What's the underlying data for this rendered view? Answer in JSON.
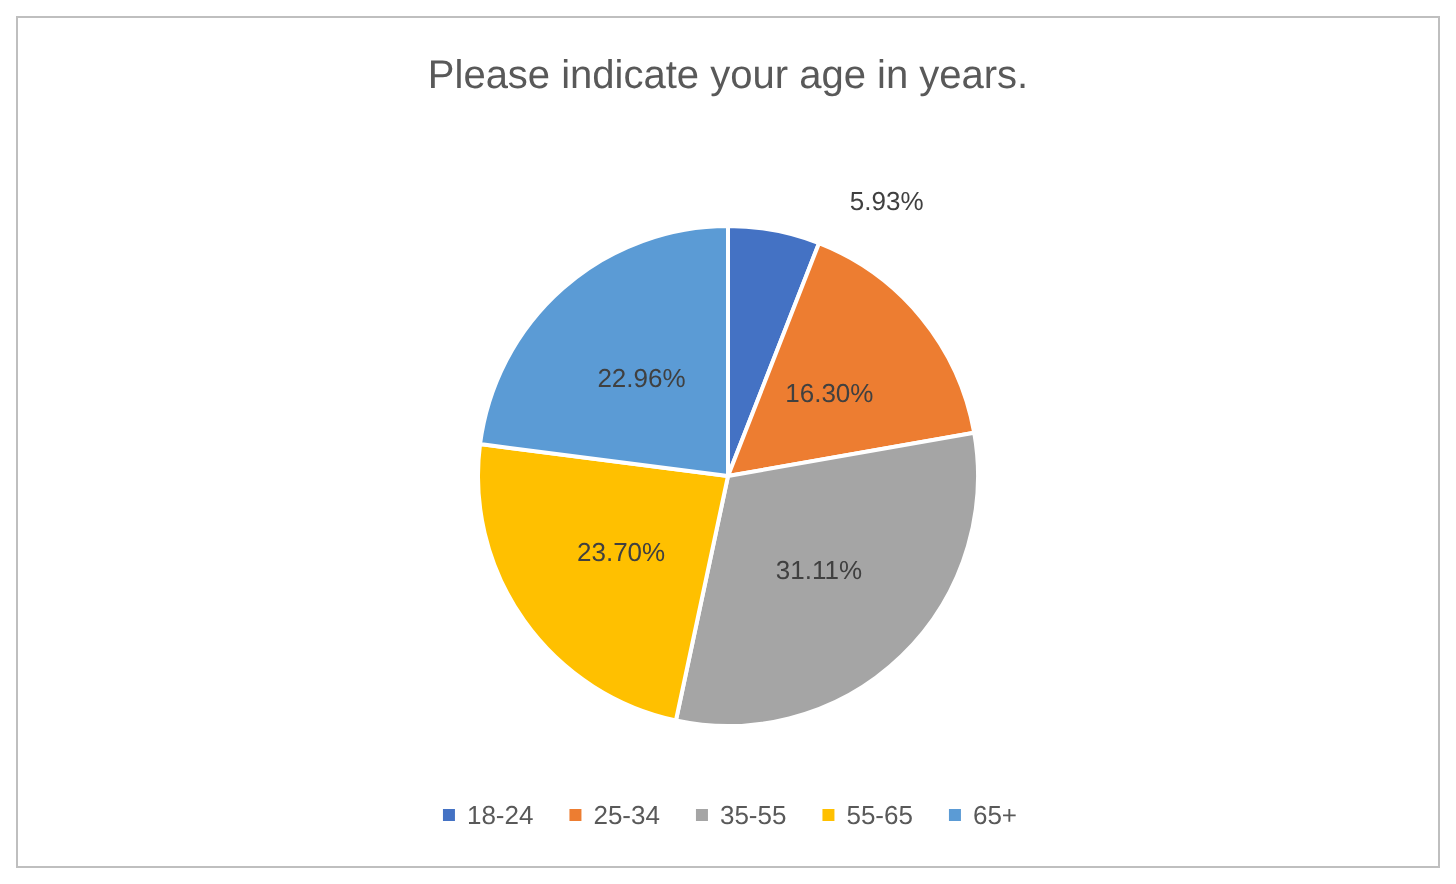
{
  "chart_data": {
    "type": "pie",
    "title": "Please indicate your age in years.",
    "categories": [
      "18-24",
      "25-34",
      "35-55",
      "55-65",
      "65+"
    ],
    "values": [
      5.93,
      16.3,
      31.11,
      23.7,
      22.96
    ],
    "colors": [
      "#4472c4",
      "#ed7d31",
      "#a5a5a5",
      "#ffc000",
      "#5b9bd5"
    ],
    "value_labels": [
      "5.93%",
      "16.30%",
      "31.11%",
      "23.70%",
      "22.96%"
    ],
    "legend": "bottom"
  }
}
